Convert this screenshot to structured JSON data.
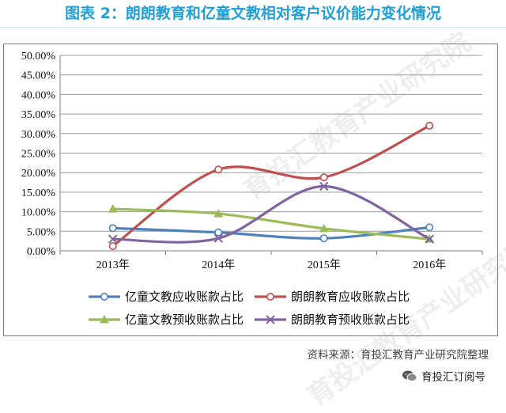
{
  "title": "图表 2：朗朗教育和亿童文教相对客户议价能力变化情况",
  "source": "资料来源：育投汇教育产业研究院整理",
  "footer": "育投汇订阅号",
  "watermark": "育投汇教育产业研究院",
  "chart_data": {
    "type": "line",
    "title": "",
    "xlabel": "",
    "ylabel": "",
    "categories": [
      "2013年",
      "2014年",
      "2015年",
      "2016年"
    ],
    "ylim": [
      0,
      50
    ],
    "yticks": [
      "0.00%",
      "5.00%",
      "10.00%",
      "15.00%",
      "20.00%",
      "25.00%",
      "30.00%",
      "35.00%",
      "40.00%",
      "45.00%",
      "50.00%"
    ],
    "grid": true,
    "legend": "bottom",
    "series": [
      {
        "name": "亿童文教应收账款占比",
        "values": [
          5.8,
          4.7,
          3.2,
          6.0
        ],
        "color": "#4f81bd",
        "marker": "circle"
      },
      {
        "name": "朗朗教育应收账款占比",
        "values": [
          1.2,
          20.8,
          18.8,
          32.0
        ],
        "color": "#c0504d",
        "marker": "circle"
      },
      {
        "name": "亿童文教预收账款占比",
        "values": [
          10.7,
          9.5,
          5.7,
          3.0
        ],
        "color": "#9bbb59",
        "marker": "triangle"
      },
      {
        "name": "朗朗教育预收账款占比",
        "values": [
          3.0,
          3.2,
          16.5,
          3.0
        ],
        "color": "#8064a2",
        "marker": "x"
      }
    ]
  }
}
